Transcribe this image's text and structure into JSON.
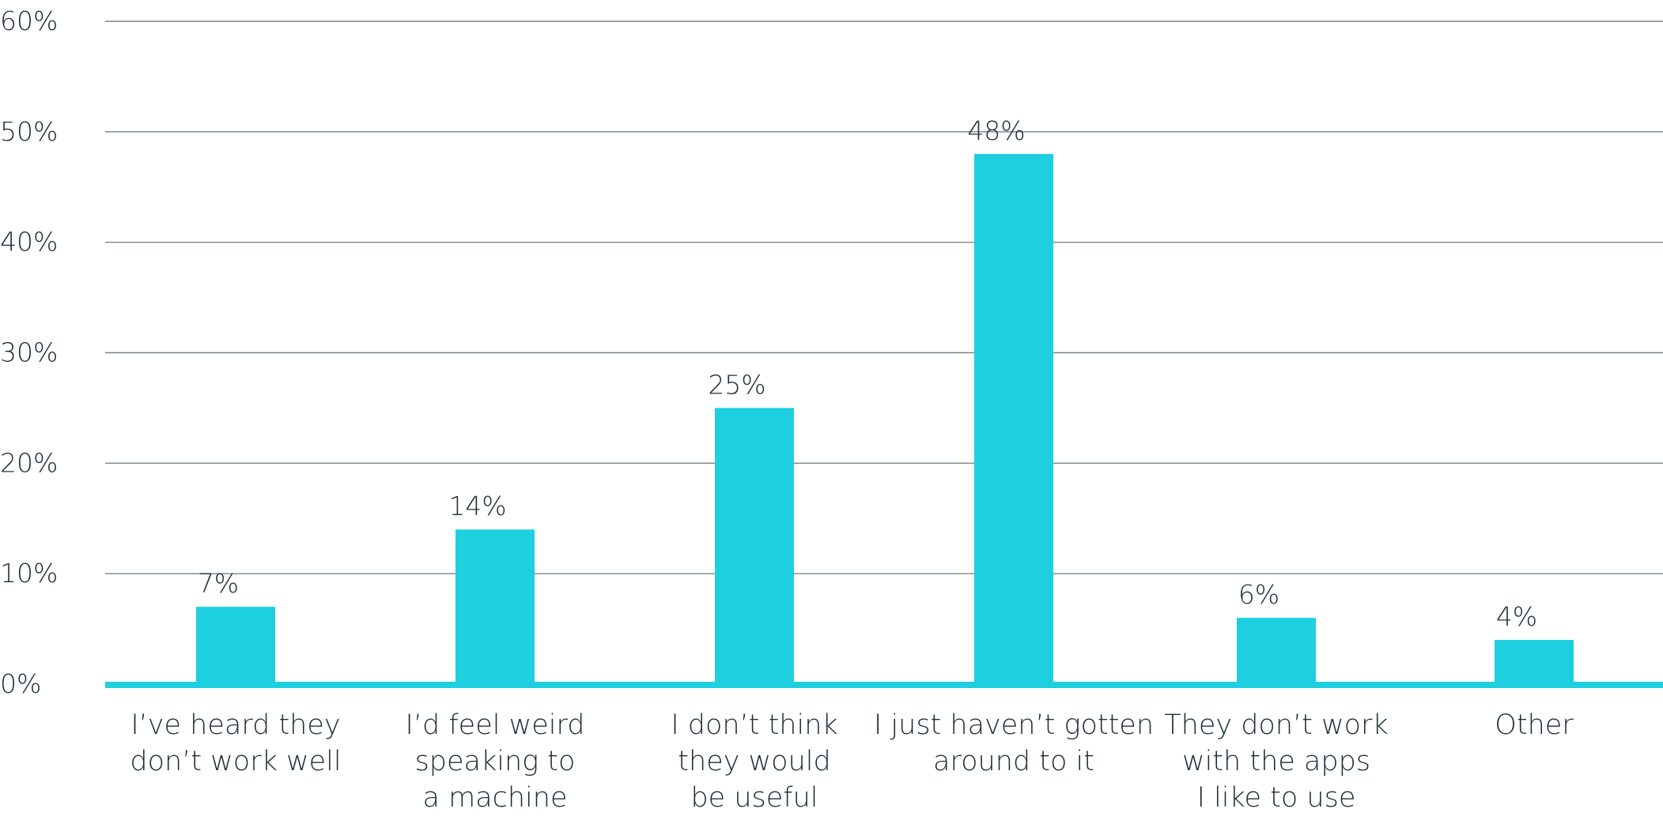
{
  "chart_data": {
    "type": "bar",
    "title": "",
    "xlabel": "",
    "ylabel": "",
    "categories": [
      "I’ve heard they don’t work well",
      "I’d feel weird speaking to a machine",
      "I don’t think they would be useful",
      "I just haven’t gotten around to it",
      "They don’t work with the apps I like to use",
      "Other"
    ],
    "category_label_lines": [
      [
        "I’ve heard they",
        "don’t work well"
      ],
      [
        "I’d feel weird",
        "speaking to",
        "a machine"
      ],
      [
        "I don’t think",
        "they would",
        "be useful"
      ],
      [
        "I just haven’t gotten",
        "around to it"
      ],
      [
        "They don’t work",
        "with the apps",
        "I like to use"
      ],
      [
        "Other"
      ]
    ],
    "values": [
      7,
      14,
      25,
      48,
      6,
      4
    ],
    "data_labels": [
      "7%",
      "14%",
      "25%",
      "48%",
      "6%",
      "4%"
    ],
    "ylim": [
      0,
      60
    ],
    "yticks": [
      0,
      10,
      20,
      30,
      40,
      50,
      60
    ],
    "ytick_labels": [
      "0%",
      "10%",
      "20%",
      "30%",
      "40%",
      "50%",
      "60%"
    ],
    "grid": true,
    "legend": "none",
    "colors": {
      "bar": "#1ecfe0",
      "baseline": "#1ecfe0",
      "grid": "#7a8388",
      "text": "#1e2f36"
    }
  }
}
